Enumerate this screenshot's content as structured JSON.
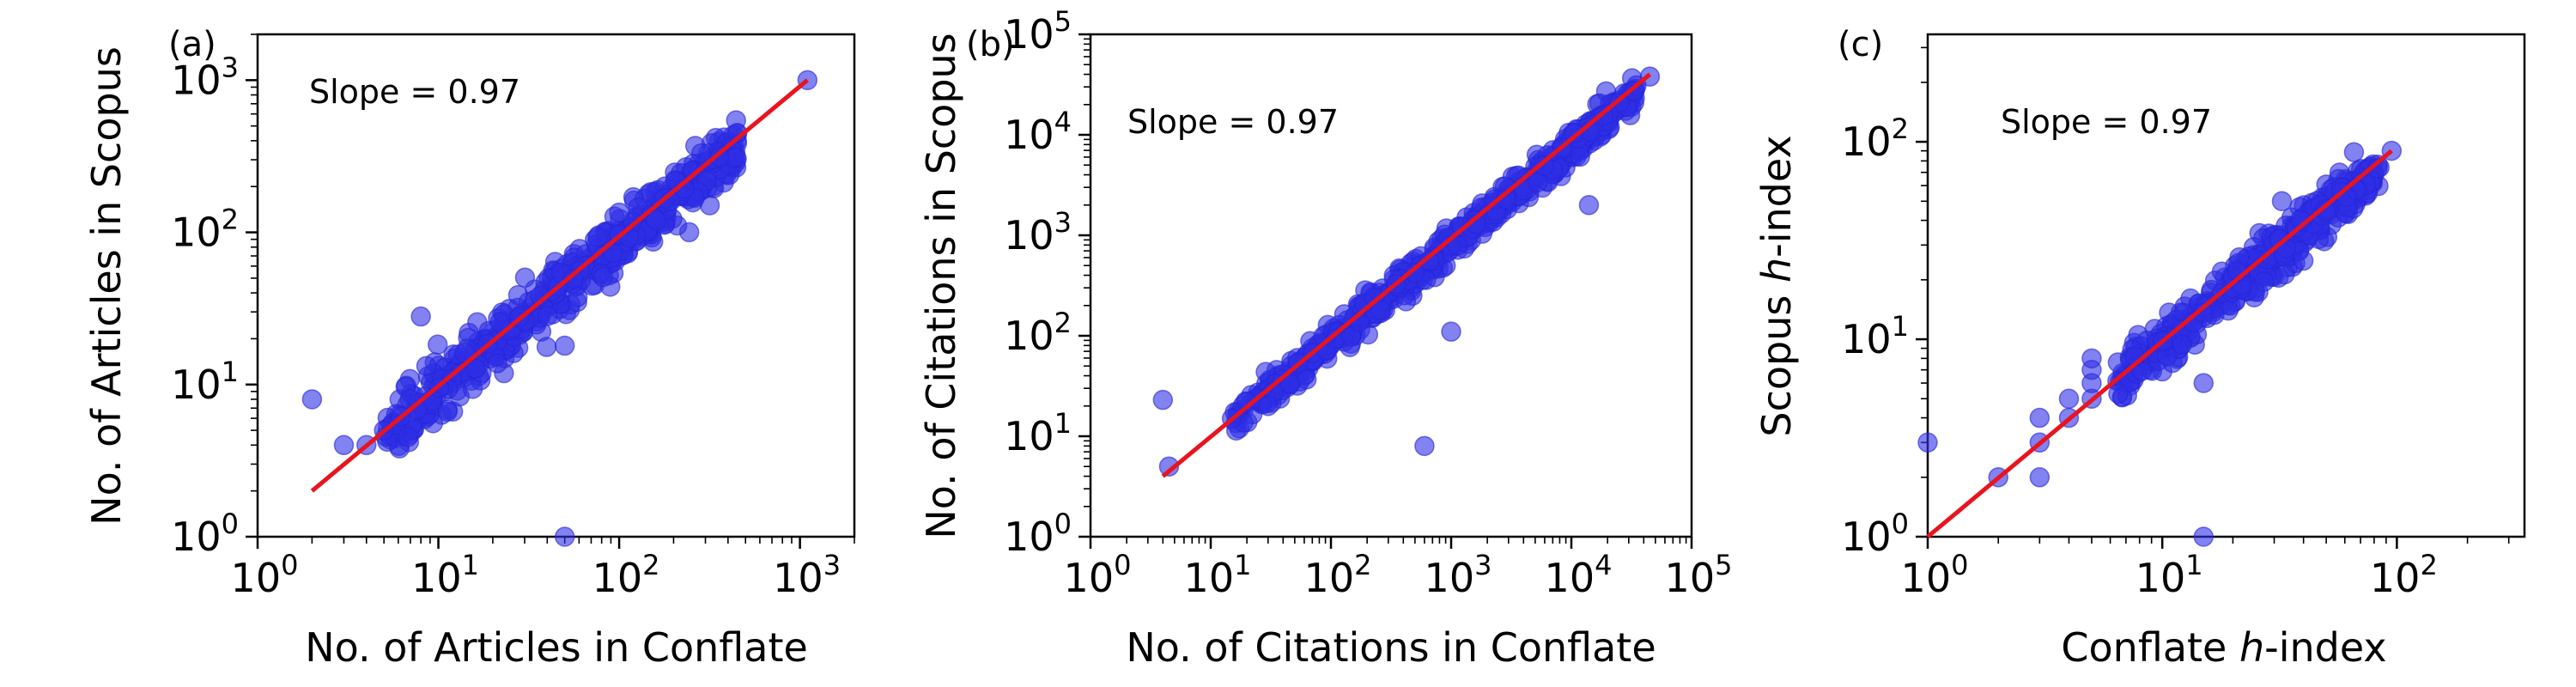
{
  "colors": {
    "points": "#2f2fe6",
    "fit_line": "#e8141e",
    "axes": "#000000"
  },
  "chart_data": [
    {
      "type": "scatter",
      "panel_label": "(a)",
      "annotation": "Slope = 0.97",
      "xlabel": "No. of Articles in Conflate",
      "ylabel": "No. of Articles in Scopus",
      "xscale": "log",
      "yscale": "log",
      "xlim": [
        1,
        2000
      ],
      "ylim": [
        1,
        2000
      ],
      "xticks": [
        {
          "base": "10",
          "exp": "0",
          "value": 1
        },
        {
          "base": "10",
          "exp": "1",
          "value": 10
        },
        {
          "base": "10",
          "exp": "2",
          "value": 100
        },
        {
          "base": "10",
          "exp": "3",
          "value": 1000
        }
      ],
      "yticks": [
        {
          "base": "10",
          "exp": "0",
          "value": 1
        },
        {
          "base": "10",
          "exp": "1",
          "value": 10
        },
        {
          "base": "10",
          "exp": "2",
          "value": 100
        },
        {
          "base": "10",
          "exp": "3",
          "value": 1000
        }
      ],
      "grid": false,
      "fit_line": {
        "x": [
          2,
          1100
        ],
        "y": [
          2,
          1000
        ]
      },
      "outliers": [
        [
          2,
          8
        ],
        [
          8,
          28
        ],
        [
          50,
          18
        ],
        [
          50,
          1
        ],
        [
          3,
          4
        ],
        [
          4,
          4
        ],
        [
          5,
          5
        ],
        [
          160,
          120
        ],
        [
          1100,
          1000
        ],
        [
          450,
          450
        ],
        [
          100,
          135
        ]
      ],
      "bulk": {
        "x_range": [
          5,
          450
        ],
        "n": 520,
        "slope": 0.97,
        "scatter": 0.09
      }
    },
    {
      "type": "scatter",
      "panel_label": "(b)",
      "annotation": "Slope = 0.97",
      "xlabel": "No. of Citations in Conflate",
      "ylabel": "No. of Citations in Scopus",
      "xscale": "log",
      "yscale": "log",
      "xlim": [
        1,
        100000
      ],
      "ylim": [
        1,
        100000
      ],
      "xticks": [
        {
          "base": "10",
          "exp": "0",
          "value": 1
        },
        {
          "base": "10",
          "exp": "1",
          "value": 10
        },
        {
          "base": "10",
          "exp": "2",
          "value": 100
        },
        {
          "base": "10",
          "exp": "3",
          "value": 1000
        },
        {
          "base": "10",
          "exp": "4",
          "value": 10000
        },
        {
          "base": "10",
          "exp": "5",
          "value": 100000
        }
      ],
      "yticks": [
        {
          "base": "10",
          "exp": "0",
          "value": 1
        },
        {
          "base": "10",
          "exp": "1",
          "value": 10
        },
        {
          "base": "10",
          "exp": "2",
          "value": 100
        },
        {
          "base": "10",
          "exp": "3",
          "value": 1000
        },
        {
          "base": "10",
          "exp": "4",
          "value": 10000
        },
        {
          "base": "10",
          "exp": "5",
          "value": 100000
        }
      ],
      "grid": false,
      "fit_line": {
        "x": [
          4,
          45000
        ],
        "y": [
          4,
          40000
        ]
      },
      "outliers": [
        [
          4,
          23
        ],
        [
          4.5,
          5
        ],
        [
          600,
          8
        ],
        [
          1000,
          110
        ],
        [
          14000,
          2000
        ],
        [
          45000,
          38000
        ],
        [
          15,
          15
        ],
        [
          20,
          22
        ],
        [
          30,
          20
        ]
      ],
      "bulk": {
        "x_range": [
          15,
          35000
        ],
        "n": 620,
        "slope": 0.97,
        "scatter": 0.08
      }
    },
    {
      "type": "scatter",
      "panel_label": "(c)",
      "annotation": "Slope = 0.97",
      "xlabel_prefix": "Conflate ",
      "xlabel_italic": "h",
      "xlabel_suffix": "-index",
      "ylabel_prefix": "Scopus ",
      "ylabel_italic": "h",
      "ylabel_suffix": "-index",
      "xscale": "log",
      "yscale": "log",
      "xlim": [
        1,
        350
      ],
      "ylim": [
        1,
        350
      ],
      "xticks": [
        {
          "base": "10",
          "exp": "0",
          "value": 1
        },
        {
          "base": "10",
          "exp": "1",
          "value": 10
        },
        {
          "base": "10",
          "exp": "2",
          "value": 100
        }
      ],
      "yticks": [
        {
          "base": "10",
          "exp": "0",
          "value": 1
        },
        {
          "base": "10",
          "exp": "1",
          "value": 10
        },
        {
          "base": "10",
          "exp": "2",
          "value": 100
        }
      ],
      "grid": false,
      "fit_line": {
        "x": [
          1,
          95
        ],
        "y": [
          1,
          90
        ]
      },
      "outliers": [
        [
          1,
          3
        ],
        [
          2,
          2
        ],
        [
          3,
          2
        ],
        [
          3,
          3
        ],
        [
          3,
          4
        ],
        [
          4,
          4
        ],
        [
          4,
          5
        ],
        [
          5,
          5
        ],
        [
          5,
          6
        ],
        [
          5,
          7
        ],
        [
          5,
          8
        ],
        [
          15,
          6
        ],
        [
          15,
          1
        ],
        [
          40,
          25
        ],
        [
          95,
          90
        ]
      ],
      "bulk": {
        "x_range": [
          6,
          85
        ],
        "n": 420,
        "slope": 0.97,
        "scatter": 0.06
      }
    }
  ]
}
